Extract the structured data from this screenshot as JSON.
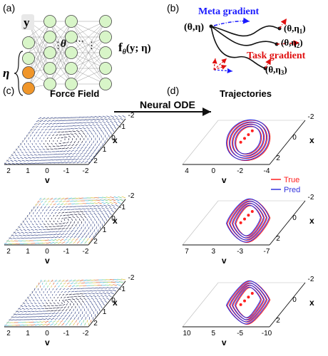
{
  "panels": {
    "a": {
      "label": "(a)",
      "input_label": "y",
      "param_label": "η",
      "weights_label": "θ",
      "dots": "⋮",
      "ellipsis": "⋯",
      "output_label": "f",
      "output_sub": "θ",
      "output_args": "(y; η)"
    },
    "b": {
      "label": "(b)",
      "meta_gradient": "Meta gradient",
      "task_gradient": "Task gradient",
      "start": "(θ,η)",
      "p1": "(θ,η",
      "p1_sub": "1",
      "p2": "(θ,η",
      "p2_sub": "2",
      "p3": "(θ,η",
      "p3_sub": "3",
      "close": ")"
    },
    "c": {
      "label": "(c)",
      "title": "Force Field"
    },
    "d": {
      "label": "(d)",
      "title": "Trajectories"
    },
    "arrow_label": "Neural ODE",
    "legend": {
      "true": "True",
      "pred": "Pred"
    }
  },
  "force_axes": {
    "x_axis": "x",
    "v_axis": "v",
    "x_ticks": [
      "2",
      "1",
      "0",
      "-1",
      "-2"
    ],
    "v_ticks": [
      "2",
      "1",
      "0",
      "-1",
      "-2"
    ]
  },
  "traj_axes": [
    {
      "x_ticks": [
        "2",
        "0",
        "-2"
      ],
      "v_ticks": [
        "4",
        "0",
        "-2",
        "-4"
      ],
      "x_axis": "x",
      "v_axis": "v"
    },
    {
      "x_ticks": [
        "2",
        "0",
        "-2"
      ],
      "v_ticks": [
        "7",
        "3",
        "-3",
        "-7"
      ],
      "x_axis": "x",
      "v_axis": "v"
    },
    {
      "x_ticks": [
        "2",
        "0",
        "-2"
      ],
      "v_ticks": [
        "10",
        "5",
        "-5",
        "-10"
      ],
      "x_axis": "x",
      "v_axis": "v"
    }
  ],
  "colors": {
    "meta": "#1a1aff",
    "task": "#e01010",
    "true": "#ff2020",
    "pred": "#3333dd",
    "node_green": "#d8f5c8",
    "node_orange": "#f0962a",
    "input_bg": "#e8e8e8"
  }
}
